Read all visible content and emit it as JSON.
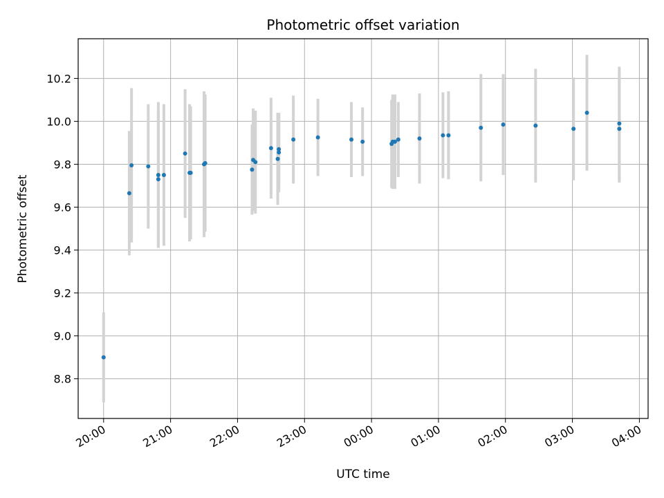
{
  "chart_data": {
    "type": "scatter",
    "title": "Photometric offset variation",
    "xlabel": "UTC time",
    "ylabel": "Photometric offset",
    "x_ticks": [
      "20:00",
      "21:00",
      "22:00",
      "23:00",
      "00:00",
      "01:00",
      "02:00",
      "03:00",
      "04:00"
    ],
    "xlim_hours": [
      19.62,
      28.13
    ],
    "y_ticks": [
      "8.8",
      "9.0",
      "9.2",
      "9.4",
      "9.6",
      "9.8",
      "10.0",
      "10.2"
    ],
    "ylim": [
      8.615,
      10.385
    ],
    "grid": true,
    "colors": {
      "point": "#1f77b4",
      "errorbar": "#d3d3d3",
      "grid": "#b0b0b0"
    },
    "points": [
      {
        "t": "20:00",
        "y": 8.9,
        "err": 0.21
      },
      {
        "t": "20:23",
        "y": 9.665,
        "err": 0.29
      },
      {
        "t": "20:25",
        "y": 9.795,
        "err": 0.36
      },
      {
        "t": "20:40",
        "y": 9.79,
        "err": 0.29
      },
      {
        "t": "20:49",
        "y": 9.75,
        "err": 0.34
      },
      {
        "t": "20:49",
        "y": 9.73,
        "err": 0.32
      },
      {
        "t": "20:54",
        "y": 9.75,
        "err": 0.33
      },
      {
        "t": "21:13",
        "y": 9.85,
        "err": 0.3
      },
      {
        "t": "21:17",
        "y": 9.76,
        "err": 0.32
      },
      {
        "t": "21:18",
        "y": 9.76,
        "err": 0.31
      },
      {
        "t": "21:30",
        "y": 9.8,
        "err": 0.34
      },
      {
        "t": "21:31",
        "y": 9.805,
        "err": 0.32
      },
      {
        "t": "22:13",
        "y": 9.775,
        "err": 0.21
      },
      {
        "t": "22:14",
        "y": 9.82,
        "err": 0.24
      },
      {
        "t": "22:16",
        "y": 9.81,
        "err": 0.24
      },
      {
        "t": "22:30",
        "y": 9.875,
        "err": 0.235
      },
      {
        "t": "22:36",
        "y": 9.825,
        "err": 0.215
      },
      {
        "t": "22:37",
        "y": 9.87,
        "err": 0.17
      },
      {
        "t": "22:37",
        "y": 9.855,
        "err": 0.185
      },
      {
        "t": "22:50",
        "y": 9.915,
        "err": 0.205
      },
      {
        "t": "23:12",
        "y": 9.925,
        "err": 0.18
      },
      {
        "t": "23:42",
        "y": 9.915,
        "err": 0.175
      },
      {
        "t": "23:52",
        "y": 9.905,
        "err": 0.16
      },
      {
        "t": "00:18",
        "y": 9.895,
        "err": 0.205
      },
      {
        "t": "00:19",
        "y": 9.905,
        "err": 0.22
      },
      {
        "t": "00:21",
        "y": 9.905,
        "err": 0.22
      },
      {
        "t": "00:24",
        "y": 9.915,
        "err": 0.175
      },
      {
        "t": "00:43",
        "y": 9.92,
        "err": 0.21
      },
      {
        "t": "01:04",
        "y": 9.935,
        "err": 0.2
      },
      {
        "t": "01:09",
        "y": 9.935,
        "err": 0.205
      },
      {
        "t": "01:38",
        "y": 9.97,
        "err": 0.25
      },
      {
        "t": "01:58",
        "y": 9.985,
        "err": 0.235
      },
      {
        "t": "02:27",
        "y": 9.98,
        "err": 0.265
      },
      {
        "t": "03:01",
        "y": 9.965,
        "err": 0.24
      },
      {
        "t": "03:13",
        "y": 10.04,
        "err": 0.27
      },
      {
        "t": "03:42",
        "y": 9.99,
        "err": 0.265
      },
      {
        "t": "03:42",
        "y": 9.965,
        "err": 0.25
      }
    ]
  }
}
